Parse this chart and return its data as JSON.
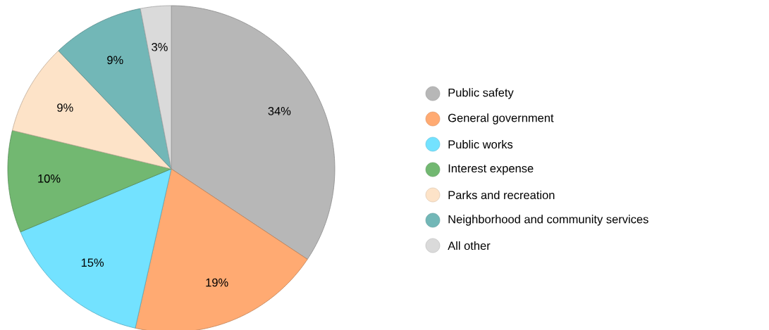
{
  "chart_data": {
    "type": "pie",
    "categories": [
      "Public safety",
      "General government",
      "Public works",
      "Interest expense",
      "Parks and recreation",
      "Neighborhood and community services",
      "All other"
    ],
    "values": [
      34,
      19,
      15,
      10,
      9,
      9,
      3
    ],
    "value_labels": [
      "34%",
      "19%",
      "15%",
      "10%",
      "9%",
      "9%",
      "3%"
    ],
    "colors": [
      "#b7b7b7",
      "#ffaa72",
      "#73e2ff",
      "#72b871",
      "#fde3c8",
      "#72b7b7",
      "#dadada"
    ],
    "legend": "right"
  }
}
